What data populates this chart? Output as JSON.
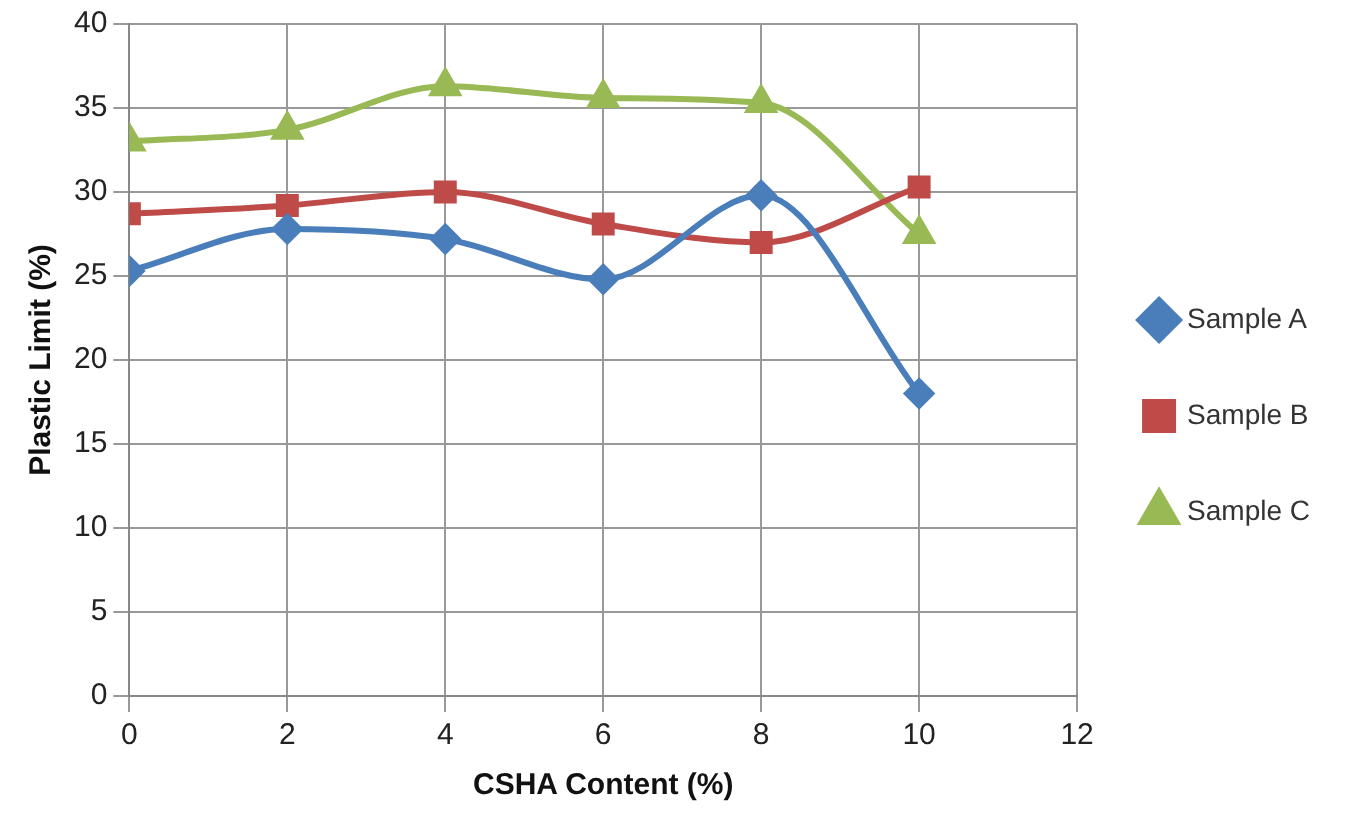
{
  "chart_data": {
    "type": "line",
    "xlabel": "CSHA Content (%)",
    "ylabel": "Plastic Limit (%)",
    "xlim": [
      0,
      12
    ],
    "xticks": [
      0,
      2,
      4,
      6,
      8,
      10,
      12
    ],
    "ylim": [
      0,
      40
    ],
    "yticks": [
      0,
      5,
      10,
      15,
      20,
      25,
      30,
      35,
      40
    ],
    "grid": true,
    "legend": "right",
    "series": [
      {
        "name": "Sample A",
        "color": "#4a7ebb",
        "marker": "diamond",
        "x": [
          0,
          2,
          4,
          6,
          8,
          10
        ],
        "values": [
          25.3,
          27.8,
          27.2,
          24.8,
          29.8,
          18
        ]
      },
      {
        "name": "Sample B",
        "color": "#be4b48",
        "marker": "square",
        "x": [
          0,
          2,
          4,
          6,
          8,
          10
        ],
        "values": [
          28.7,
          29.2,
          30,
          28.1,
          27,
          30.3
        ]
      },
      {
        "name": "Sample C",
        "color": "#98b954",
        "marker": "triangle",
        "x": [
          0,
          2,
          4,
          6,
          8,
          10
        ],
        "values": [
          33,
          33.7,
          36.3,
          35.6,
          35.3,
          27.5
        ]
      }
    ]
  }
}
